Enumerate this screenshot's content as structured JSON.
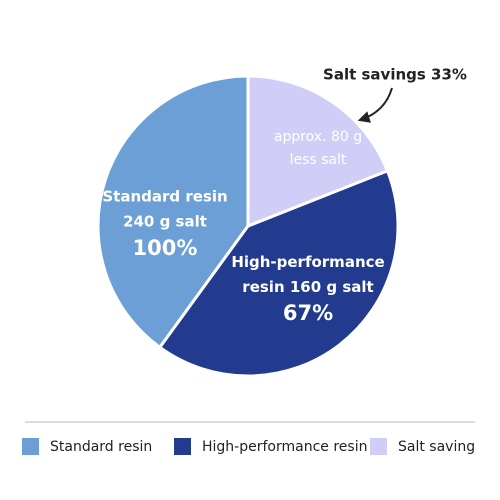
{
  "chart_data": {
    "type": "pie",
    "categories": [
      "Standard resin",
      "High-performance resin",
      "Salt saving"
    ],
    "values": [
      40,
      41,
      19
    ],
    "colors": [
      "#6b9fd5",
      "#233b8e",
      "#d0cef7"
    ],
    "slice_labels": [
      [
        "Standard resin",
        "240 g salt",
        "100%"
      ],
      [
        "High-performance resin 160 g salt",
        "67%"
      ],
      [
        "approx. 80 g",
        "less salt"
      ]
    ],
    "annotation": "Salt savings 33%",
    "legend": "bottom"
  }
}
